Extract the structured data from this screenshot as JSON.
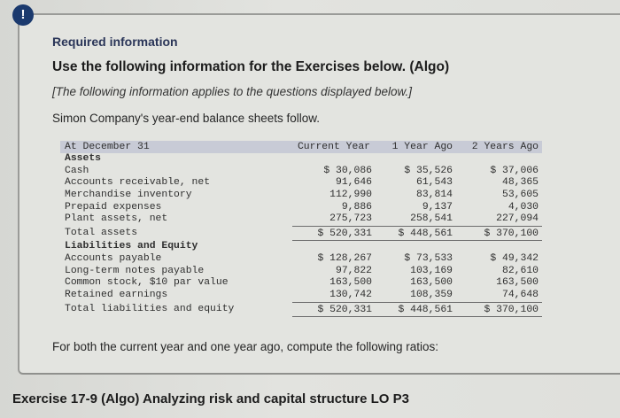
{
  "alert": {
    "icon": "!"
  },
  "header": {
    "required_label": "Required information",
    "title": "Use the following information for the Exercises below. (Algo)",
    "note": "[The following information applies to the questions displayed below.]",
    "intro": "Simon Company's year-end balance sheets follow."
  },
  "balance_sheet": {
    "header": {
      "label": "At December 31",
      "columns": [
        "Current Year",
        "1 Year Ago",
        "2 Years Ago"
      ]
    },
    "assets_heading": "Assets",
    "assets": [
      {
        "label": "Cash",
        "values": [
          "$ 30,086",
          "$ 35,526",
          "$ 37,006"
        ]
      },
      {
        "label": "Accounts receivable, net",
        "values": [
          "91,646",
          "61,543",
          "48,365"
        ]
      },
      {
        "label": "Merchandise inventory",
        "values": [
          "112,990",
          "83,814",
          "53,605"
        ]
      },
      {
        "label": "Prepaid expenses",
        "values": [
          "9,886",
          "9,137",
          "4,030"
        ]
      },
      {
        "label": "Plant assets, net",
        "values": [
          "275,723",
          "258,541",
          "227,094"
        ]
      }
    ],
    "total_assets": {
      "label": "Total assets",
      "values": [
        "$ 520,331",
        "$ 448,561",
        "$ 370,100"
      ]
    },
    "liabilities_heading": "Liabilities and Equity",
    "liabilities": [
      {
        "label": "Accounts payable",
        "values": [
          "$ 128,267",
          "$ 73,533",
          "$ 49,342"
        ]
      },
      {
        "label": "Long-term notes payable",
        "values": [
          "97,822",
          "103,169",
          "82,610"
        ]
      },
      {
        "label": "Common stock, $10 par value",
        "values": [
          "163,500",
          "163,500",
          "163,500"
        ]
      },
      {
        "label": "Retained earnings",
        "values": [
          "130,742",
          "108,359",
          "74,648"
        ]
      }
    ],
    "total_liabilities": {
      "label": "Total liabilities and equity",
      "values": [
        "$ 520,331",
        "$ 448,561",
        "$ 370,100"
      ]
    }
  },
  "footer": {
    "instruction": "For both the current year and one year ago, compute the following ratios:"
  },
  "exercise": {
    "title": "Exercise 17-9 (Algo) Analyzing risk and capital structure LO P3"
  },
  "colors": {
    "alert_icon_bg": "#1b3a6e",
    "required_label": "#2a3558",
    "table_header_bg": "#c8cbd6"
  }
}
